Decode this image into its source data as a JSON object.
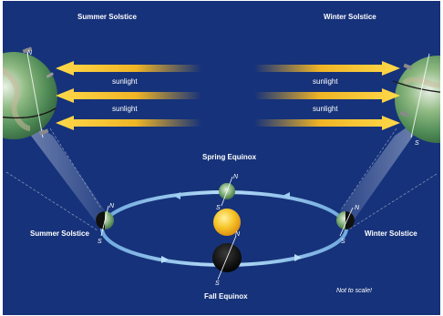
{
  "labels": {
    "summer_top": "Summer Solstice",
    "winter_top": "Winter Solstice",
    "spring": "Spring Equinox",
    "fall": "Fall Equinox",
    "summer_orbit": "Summer Solstice",
    "winter_orbit": "Winter Solstice",
    "note": "Not to scale!"
  },
  "sunlight": {
    "label": "sunlight"
  },
  "poles": {
    "north": "N",
    "south": "S"
  },
  "colors": {
    "background": "#16327a",
    "sunlight_arrow": "#f5c533",
    "sun": "#f2b21a",
    "orbit": "#8fc3ee"
  }
}
